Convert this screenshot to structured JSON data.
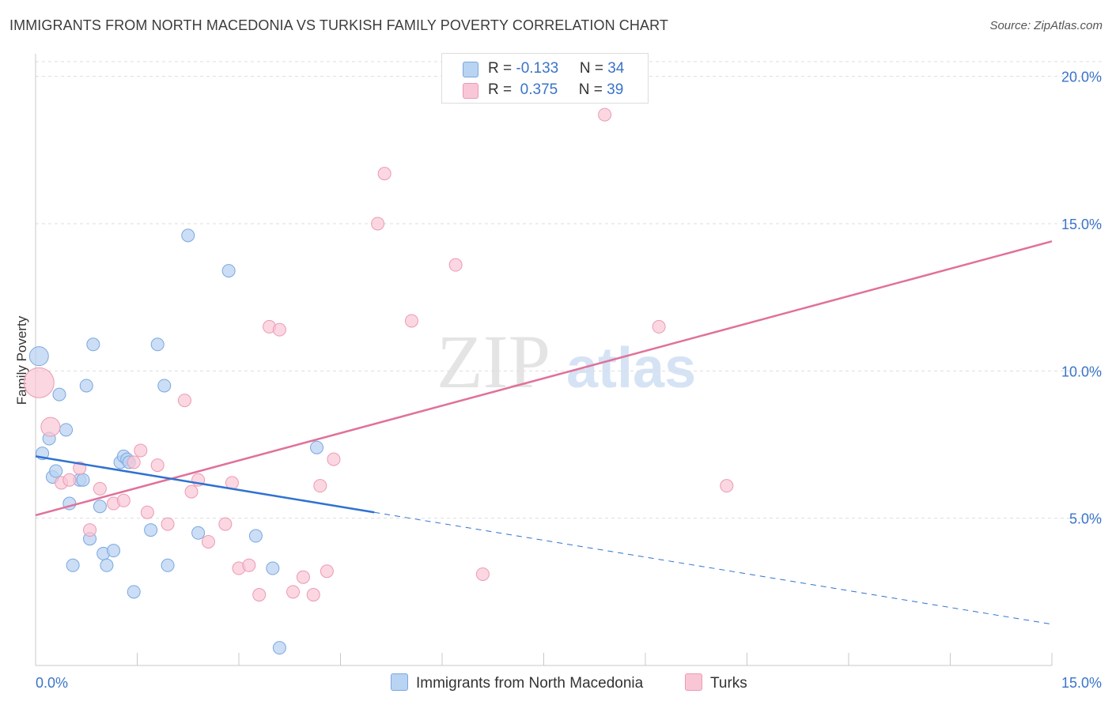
{
  "title": "IMMIGRANTS FROM NORTH MACEDONIA VS TURKISH FAMILY POVERTY CORRELATION CHART",
  "source": "Source: ZipAtlas.com",
  "watermark": {
    "zip": "ZIP",
    "atlas": "atlas"
  },
  "legend": {
    "rows": [
      {
        "r_label": "R = ",
        "r_value": "-0.133",
        "n_label": "N = ",
        "n_value": "34"
      },
      {
        "r_label": "R = ",
        "r_value": " 0.375",
        "n_label": "N = ",
        "n_value": "39"
      }
    ]
  },
  "bottom_legend": [
    "Immigrants from North Macedonia",
    "Turks"
  ],
  "colors": {
    "blue_fill": "#b9d3f2",
    "blue_stroke": "#7aa7e0",
    "blue_line": "#2f72d0",
    "pink_fill": "#f9c6d5",
    "pink_stroke": "#ec9ab3",
    "pink_line": "#e0719a",
    "tick_text": "#3a74c9",
    "grid": "#dddddd"
  },
  "chart_data": {
    "type": "scatter",
    "title": "IMMIGRANTS FROM NORTH MACEDONIA VS TURKISH FAMILY POVERTY CORRELATION CHART",
    "xlabel": "",
    "ylabel": "Family Poverty",
    "xlim": [
      0,
      15
    ],
    "ylim": [
      0,
      20.5
    ],
    "x_tick_labels": [
      "0.0%",
      "15.0%"
    ],
    "y_ticks": [
      5,
      10,
      15,
      20
    ],
    "y_tick_labels": [
      "5.0%",
      "10.0%",
      "15.0%",
      "20.0%"
    ],
    "grid": true,
    "legend_position": "top-center",
    "series": [
      {
        "name": "Immigrants from North Macedonia",
        "R": -0.133,
        "N": 34,
        "points": [
          [
            0.05,
            10.5
          ],
          [
            0.1,
            7.2
          ],
          [
            0.2,
            7.7
          ],
          [
            0.25,
            6.4
          ],
          [
            0.3,
            6.6
          ],
          [
            0.35,
            9.2
          ],
          [
            0.45,
            8.0
          ],
          [
            0.5,
            5.5
          ],
          [
            0.55,
            3.4
          ],
          [
            0.65,
            6.3
          ],
          [
            0.7,
            6.3
          ],
          [
            0.75,
            9.5
          ],
          [
            0.8,
            4.3
          ],
          [
            0.85,
            10.9
          ],
          [
            0.95,
            5.4
          ],
          [
            1.0,
            3.8
          ],
          [
            1.05,
            3.4
          ],
          [
            1.15,
            3.9
          ],
          [
            1.25,
            6.9
          ],
          [
            1.3,
            7.1
          ],
          [
            1.35,
            7.0
          ],
          [
            1.45,
            2.5
          ],
          [
            1.7,
            4.6
          ],
          [
            1.8,
            10.9
          ],
          [
            1.9,
            9.5
          ],
          [
            1.95,
            3.4
          ],
          [
            2.25,
            14.6
          ],
          [
            2.4,
            4.5
          ],
          [
            2.85,
            13.4
          ],
          [
            3.25,
            4.4
          ],
          [
            3.5,
            3.3
          ],
          [
            3.6,
            0.6
          ],
          [
            4.15,
            7.4
          ],
          [
            1.38,
            6.9
          ]
        ],
        "trend_solid": [
          [
            0,
            7.1
          ],
          [
            5.0,
            5.2
          ]
        ],
        "trend_dashed": [
          [
            5.0,
            5.2
          ],
          [
            15.0,
            1.4
          ]
        ]
      },
      {
        "name": "Turks",
        "R": 0.375,
        "N": 39,
        "points": [
          [
            0.05,
            9.6
          ],
          [
            0.22,
            8.1
          ],
          [
            0.38,
            6.2
          ],
          [
            0.5,
            6.3
          ],
          [
            0.65,
            6.7
          ],
          [
            0.8,
            4.6
          ],
          [
            0.95,
            6.0
          ],
          [
            1.15,
            5.5
          ],
          [
            1.3,
            5.6
          ],
          [
            1.45,
            6.9
          ],
          [
            1.55,
            7.3
          ],
          [
            1.65,
            5.2
          ],
          [
            1.8,
            6.8
          ],
          [
            1.95,
            4.8
          ],
          [
            2.2,
            9.0
          ],
          [
            2.3,
            5.9
          ],
          [
            2.4,
            6.3
          ],
          [
            2.55,
            4.2
          ],
          [
            2.8,
            4.8
          ],
          [
            2.9,
            6.2
          ],
          [
            3.0,
            3.3
          ],
          [
            3.15,
            3.4
          ],
          [
            3.3,
            2.4
          ],
          [
            3.45,
            11.5
          ],
          [
            3.6,
            11.4
          ],
          [
            3.8,
            2.5
          ],
          [
            3.95,
            3.0
          ],
          [
            4.1,
            2.4
          ],
          [
            4.2,
            6.1
          ],
          [
            4.3,
            3.2
          ],
          [
            4.4,
            7.0
          ],
          [
            5.05,
            15.0
          ],
          [
            5.15,
            16.7
          ],
          [
            5.55,
            11.7
          ],
          [
            6.2,
            13.6
          ],
          [
            6.6,
            3.1
          ],
          [
            8.4,
            18.7
          ],
          [
            9.2,
            11.5
          ],
          [
            10.2,
            6.1
          ]
        ],
        "trend_solid": [
          [
            0,
            5.1
          ],
          [
            15.0,
            14.4
          ]
        ]
      }
    ]
  }
}
